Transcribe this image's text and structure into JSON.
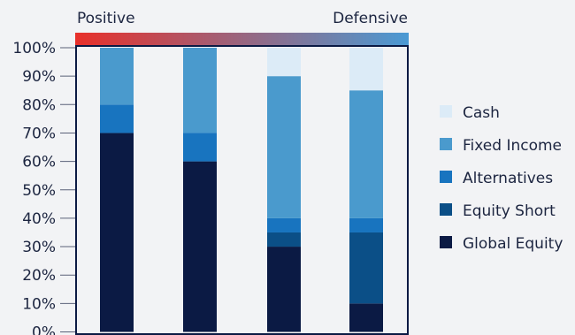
{
  "chart_data": {
    "type": "bar",
    "stacked": true,
    "categories": [
      "",
      "",
      "",
      ""
    ],
    "ylim": [
      0,
      100
    ],
    "yticks": [
      "0%",
      "10%",
      "20%",
      "30%",
      "40%",
      "50%",
      "60%",
      "70%",
      "80%",
      "90%",
      "100%"
    ],
    "gradient_bar": {
      "left_label": "Positive",
      "right_label": "Defensive",
      "left_color": "#e8302a",
      "right_color": "#4a9ad4"
    },
    "series": [
      {
        "name": "Global Equity",
        "color": "#0b1a44",
        "values": [
          70,
          60,
          30,
          10
        ]
      },
      {
        "name": "Equity Short",
        "color": "#0b4f87",
        "values": [
          0,
          0,
          5,
          25
        ]
      },
      {
        "name": "Alternatives",
        "color": "#1874bf",
        "values": [
          10,
          10,
          5,
          5
        ]
      },
      {
        "name": "Fixed Income",
        "color": "#4a9acd",
        "values": [
          20,
          30,
          50,
          45
        ]
      },
      {
        "name": "Cash",
        "color": "#dcebf7",
        "values": [
          0,
          0,
          10,
          15
        ]
      }
    ],
    "legend_order": [
      "Cash",
      "Fixed Income",
      "Alternatives",
      "Equity Short",
      "Global Equity"
    ],
    "legend_position": "right",
    "grid": false
  }
}
